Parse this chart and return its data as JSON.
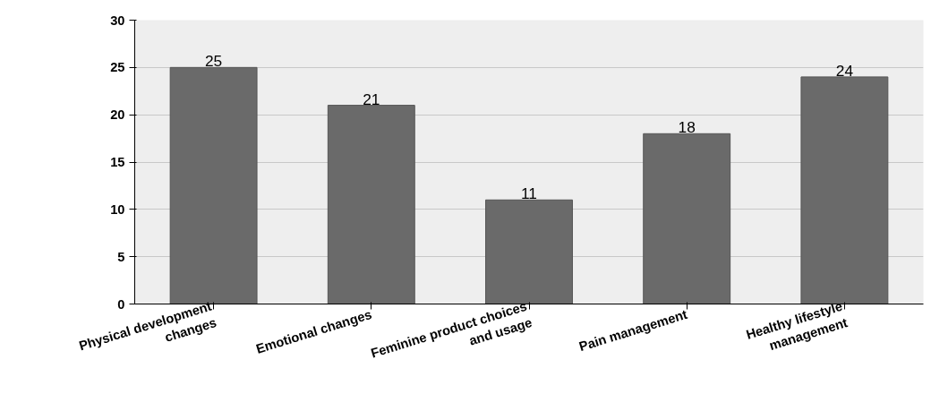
{
  "chart_data": {
    "type": "bar",
    "categories": [
      "Physical development changes",
      "Emotional changes",
      "Feminine product choices and usage",
      "Pain management",
      "Healthy lifestyle management"
    ],
    "values": [
      25,
      21,
      11,
      18,
      24
    ],
    "color": "#6a6a6a",
    "ylim": [
      0,
      30
    ],
    "yticks": [
      0,
      5,
      10,
      15,
      20,
      25,
      30
    ],
    "grid": "y",
    "data_labels": true
  }
}
